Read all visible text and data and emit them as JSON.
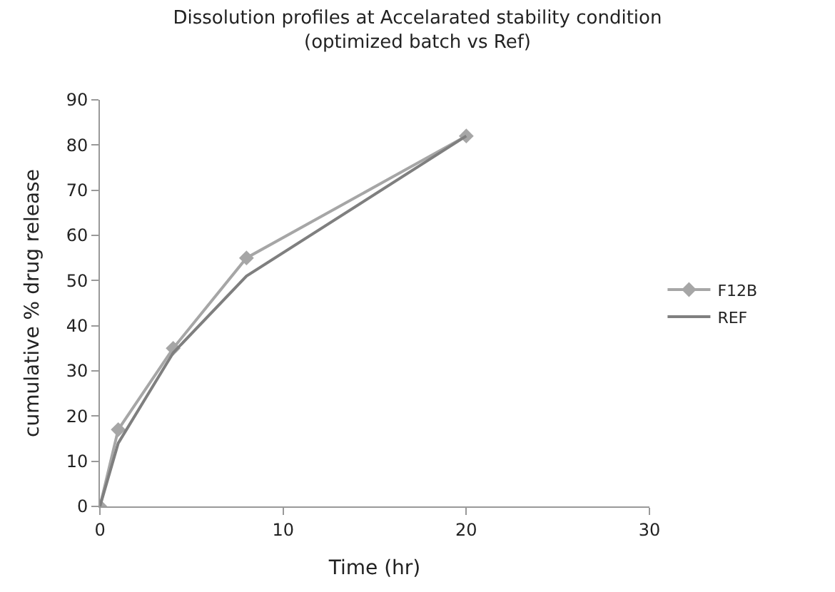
{
  "chart_data": {
    "type": "line",
    "title": "Dissolution profiles at Accelarated stability condition\n(optimized batch vs Ref)",
    "xlabel": "Time (hr)",
    "ylabel": "cumulative % drug release",
    "x": [
      0,
      1,
      4,
      8,
      20
    ],
    "series": [
      {
        "name": "F12B",
        "color": "#a6a6a6",
        "values": [
          0,
          17,
          35,
          55,
          82
        ],
        "marker": "diamond"
      },
      {
        "name": "REF",
        "color": "#7f7f7f",
        "values": [
          0,
          14,
          34,
          51,
          82
        ],
        "marker": "none"
      }
    ],
    "xlim": [
      0,
      30
    ],
    "xticks": [
      0,
      10,
      20,
      30
    ],
    "ylim": [
      0,
      90
    ],
    "yticks": [
      0,
      10,
      20,
      30,
      40,
      50,
      60,
      70,
      80,
      90
    ],
    "grid": false,
    "legend": "right",
    "line_style": "solid"
  }
}
